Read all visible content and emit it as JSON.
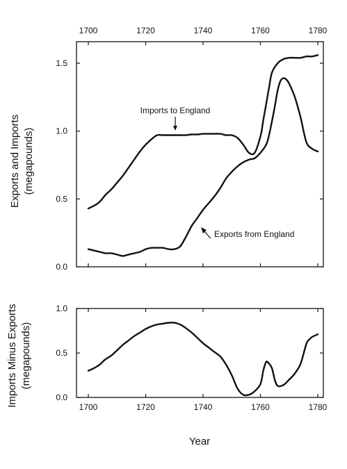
{
  "chart_data": [
    {
      "type": "line",
      "ylabel": [
        "Exports and Imports",
        "(megapounds)"
      ],
      "xlim": [
        1700,
        1780
      ],
      "ylim": [
        0,
        1.5
      ],
      "x_ticks": [
        1700,
        1720,
        1740,
        1760,
        1780
      ],
      "y_ticks": [
        {
          "v": 0,
          "label": "0.0"
        },
        {
          "v": 0.5,
          "label": "0.5"
        },
        {
          "v": 1.0,
          "label": "1.0"
        },
        {
          "v": 1.5,
          "label": "1.5"
        }
      ],
      "x_tick_labels_position": "top",
      "grid": false,
      "series": [
        {
          "name": "Imports to England",
          "x": [
            1700,
            1702,
            1704,
            1706,
            1708,
            1710,
            1712,
            1714,
            1716,
            1718,
            1720,
            1722,
            1724,
            1726,
            1728,
            1730,
            1732,
            1734,
            1736,
            1738,
            1740,
            1742,
            1744,
            1746,
            1748,
            1750,
            1752,
            1754,
            1756,
            1758,
            1760,
            1761,
            1762,
            1763,
            1764,
            1766,
            1768,
            1770,
            1772,
            1774,
            1776,
            1778,
            1780
          ],
          "values": [
            0.43,
            0.45,
            0.48,
            0.53,
            0.57,
            0.62,
            0.67,
            0.73,
            0.79,
            0.85,
            0.9,
            0.94,
            0.97,
            0.97,
            0.97,
            0.97,
            0.97,
            0.97,
            0.975,
            0.975,
            0.98,
            0.98,
            0.98,
            0.98,
            0.97,
            0.97,
            0.95,
            0.9,
            0.84,
            0.84,
            0.96,
            1.08,
            1.2,
            1.32,
            1.43,
            1.5,
            1.53,
            1.54,
            1.54,
            1.54,
            1.55,
            1.55,
            1.56
          ]
        },
        {
          "name": "Exports from England",
          "x": [
            1700,
            1702,
            1704,
            1706,
            1708,
            1710,
            1712,
            1714,
            1716,
            1718,
            1720,
            1722,
            1724,
            1726,
            1728,
            1730,
            1732,
            1734,
            1736,
            1738,
            1740,
            1742,
            1744,
            1746,
            1748,
            1750,
            1752,
            1754,
            1756,
            1758,
            1760,
            1762,
            1763,
            1764,
            1765,
            1766,
            1767,
            1768,
            1769,
            1770,
            1772,
            1774,
            1776,
            1778,
            1780
          ],
          "values": [
            0.13,
            0.12,
            0.11,
            0.1,
            0.1,
            0.09,
            0.08,
            0.09,
            0.1,
            0.11,
            0.13,
            0.14,
            0.14,
            0.14,
            0.13,
            0.13,
            0.15,
            0.22,
            0.3,
            0.36,
            0.42,
            0.47,
            0.52,
            0.58,
            0.65,
            0.7,
            0.74,
            0.77,
            0.79,
            0.8,
            0.84,
            0.9,
            0.97,
            1.07,
            1.18,
            1.3,
            1.37,
            1.39,
            1.38,
            1.35,
            1.25,
            1.1,
            0.92,
            0.87,
            0.85
          ]
        }
      ],
      "annotations": [
        {
          "text": "Imports to England"
        },
        {
          "text": "Exports from England"
        }
      ]
    },
    {
      "type": "line",
      "xlabel": "Year",
      "ylabel": [
        "Imports Minus Exports",
        "(megapounds)"
      ],
      "xlim": [
        1700,
        1780
      ],
      "ylim": [
        0,
        1.0
      ],
      "x_ticks": [
        1700,
        1720,
        1740,
        1760,
        1780
      ],
      "y_ticks": [
        {
          "v": 0,
          "label": "0.0"
        },
        {
          "v": 0.5,
          "label": "0.5"
        },
        {
          "v": 1.0,
          "label": "1.0"
        }
      ],
      "grid": false,
      "series": [
        {
          "x": [
            1700,
            1702,
            1704,
            1706,
            1708,
            1710,
            1712,
            1714,
            1716,
            1718,
            1720,
            1722,
            1724,
            1726,
            1728,
            1730,
            1732,
            1734,
            1736,
            1738,
            1740,
            1742,
            1744,
            1746,
            1748,
            1750,
            1752,
            1754,
            1756,
            1758,
            1760,
            1761,
            1762,
            1763,
            1764,
            1765,
            1766,
            1768,
            1770,
            1772,
            1774,
            1776,
            1777,
            1778,
            1780
          ],
          "values": [
            0.3,
            0.33,
            0.37,
            0.43,
            0.47,
            0.53,
            0.59,
            0.64,
            0.69,
            0.73,
            0.77,
            0.8,
            0.82,
            0.83,
            0.84,
            0.84,
            0.82,
            0.78,
            0.73,
            0.67,
            0.61,
            0.56,
            0.51,
            0.46,
            0.37,
            0.25,
            0.1,
            0.03,
            0.03,
            0.07,
            0.15,
            0.3,
            0.4,
            0.38,
            0.33,
            0.2,
            0.13,
            0.14,
            0.2,
            0.27,
            0.38,
            0.6,
            0.65,
            0.68,
            0.71
          ]
        }
      ]
    }
  ]
}
